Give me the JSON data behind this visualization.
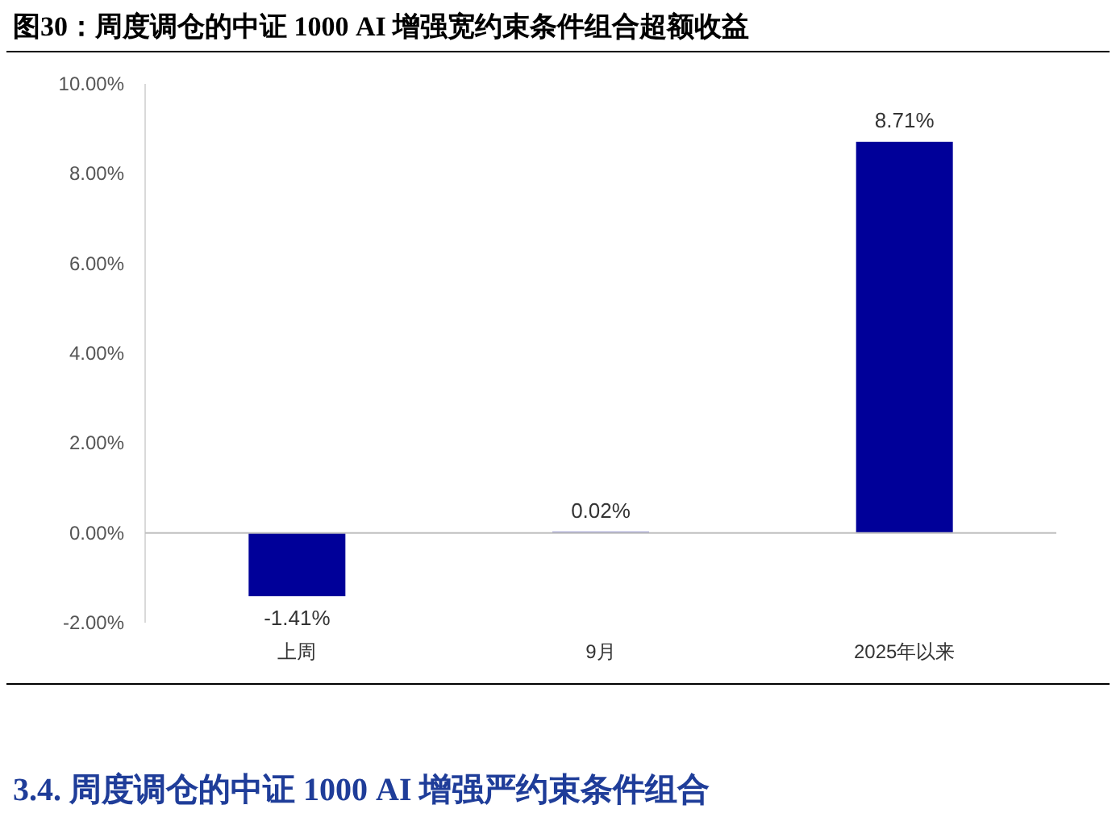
{
  "chart_data": {
    "type": "bar",
    "title": "图30：周度调仓的中证 1000 AI 增强宽约束条件组合超额收益",
    "categories": [
      "上周",
      "9月",
      "2025年以来"
    ],
    "values": [
      -1.41,
      0.02,
      8.71
    ],
    "value_labels": [
      "-1.41%",
      "0.02%",
      "8.71%"
    ],
    "color": "#000099",
    "ylim": [
      -2,
      10
    ],
    "yticks": [
      {
        "value": -2,
        "label": "-2.00%"
      },
      {
        "value": 0,
        "label": "0.00%"
      },
      {
        "value": 2,
        "label": "2.00%"
      },
      {
        "value": 4,
        "label": "4.00%"
      },
      {
        "value": 6,
        "label": "6.00%"
      },
      {
        "value": 8,
        "label": "8.00%"
      },
      {
        "value": 10,
        "label": "10.00%"
      }
    ],
    "annotations": [
      "3.4.  周度调仓的中证 1000 AI 增强严约束条件组合"
    ]
  }
}
